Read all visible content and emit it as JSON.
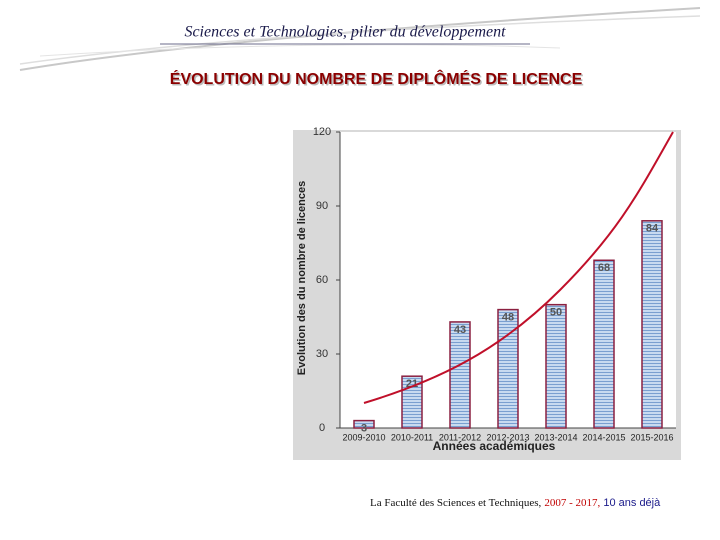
{
  "header": {
    "title": "Sciences et Technologies, pilier du développement"
  },
  "chart_data": {
    "type": "bar",
    "title": "ÉVOLUTION DU NOMBRE DE DIPLÔMÉS DE LICENCE",
    "y_label": "Evolution des du nombre de licences",
    "x_label": "Années académiques",
    "categories": [
      "2009-2010",
      "2010-2011",
      "2011-2012",
      "2012-2013",
      "2013-2014",
      "2014-2015",
      "2015-2016"
    ],
    "values": [
      3,
      21,
      43,
      48,
      50,
      68,
      84
    ],
    "color": "#c8daf0",
    "stripe_color": "#7a9fd0",
    "edge_color": "#8b2040",
    "ylim": [
      0,
      120
    ],
    "yticks": [
      0,
      30,
      60,
      90,
      120
    ],
    "grid": false
  },
  "footer": {
    "prefix": "La Faculté des Sciences et Techniques,",
    "years": "2007 - 2017,",
    "suffix": "10 ans déjà"
  }
}
